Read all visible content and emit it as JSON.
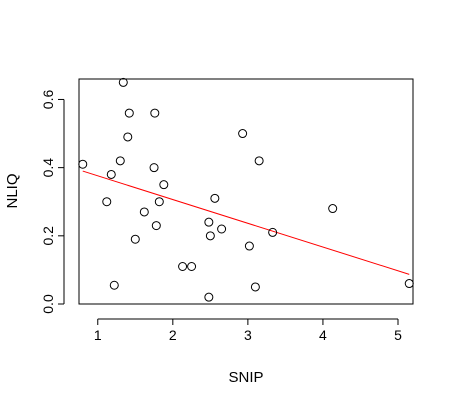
{
  "chart_data": {
    "type": "scatter",
    "title": "",
    "xlabel": "SNIP",
    "ylabel": "NLIQ",
    "xlim": [
      0.75,
      5.2
    ],
    "ylim": [
      0.0,
      0.66
    ],
    "x_ticks": [
      1,
      2,
      3,
      4,
      5
    ],
    "y_ticks": [
      0.0,
      0.2,
      0.4,
      0.6
    ],
    "y_tick_labels": [
      "0.0",
      "0.2",
      "0.4",
      "0.6"
    ],
    "grid": false,
    "legend": "none",
    "series": [
      {
        "points": [
          {
            "x": 0.8,
            "y": 0.41
          },
          {
            "x": 1.12,
            "y": 0.3
          },
          {
            "x": 1.18,
            "y": 0.38
          },
          {
            "x": 1.22,
            "y": 0.055
          },
          {
            "x": 1.3,
            "y": 0.42
          },
          {
            "x": 1.34,
            "y": 0.65
          },
          {
            "x": 1.4,
            "y": 0.49
          },
          {
            "x": 1.42,
            "y": 0.56
          },
          {
            "x": 1.5,
            "y": 0.19
          },
          {
            "x": 1.62,
            "y": 0.27
          },
          {
            "x": 1.75,
            "y": 0.4
          },
          {
            "x": 1.76,
            "y": 0.56
          },
          {
            "x": 1.78,
            "y": 0.23
          },
          {
            "x": 1.82,
            "y": 0.3
          },
          {
            "x": 1.88,
            "y": 0.35
          },
          {
            "x": 2.13,
            "y": 0.11
          },
          {
            "x": 2.25,
            "y": 0.11
          },
          {
            "x": 2.48,
            "y": 0.02
          },
          {
            "x": 2.48,
            "y": 0.24
          },
          {
            "x": 2.5,
            "y": 0.2
          },
          {
            "x": 2.56,
            "y": 0.31
          },
          {
            "x": 2.65,
            "y": 0.22
          },
          {
            "x": 2.93,
            "y": 0.5
          },
          {
            "x": 3.02,
            "y": 0.17
          },
          {
            "x": 3.1,
            "y": 0.05
          },
          {
            "x": 3.15,
            "y": 0.42
          },
          {
            "x": 3.33,
            "y": 0.21
          },
          {
            "x": 4.13,
            "y": 0.28
          },
          {
            "x": 5.15,
            "y": 0.06
          }
        ]
      }
    ],
    "fit_line": {
      "color": "#ff0000",
      "x": [
        0.8,
        5.15
      ],
      "y": [
        0.39,
        0.087
      ]
    }
  }
}
